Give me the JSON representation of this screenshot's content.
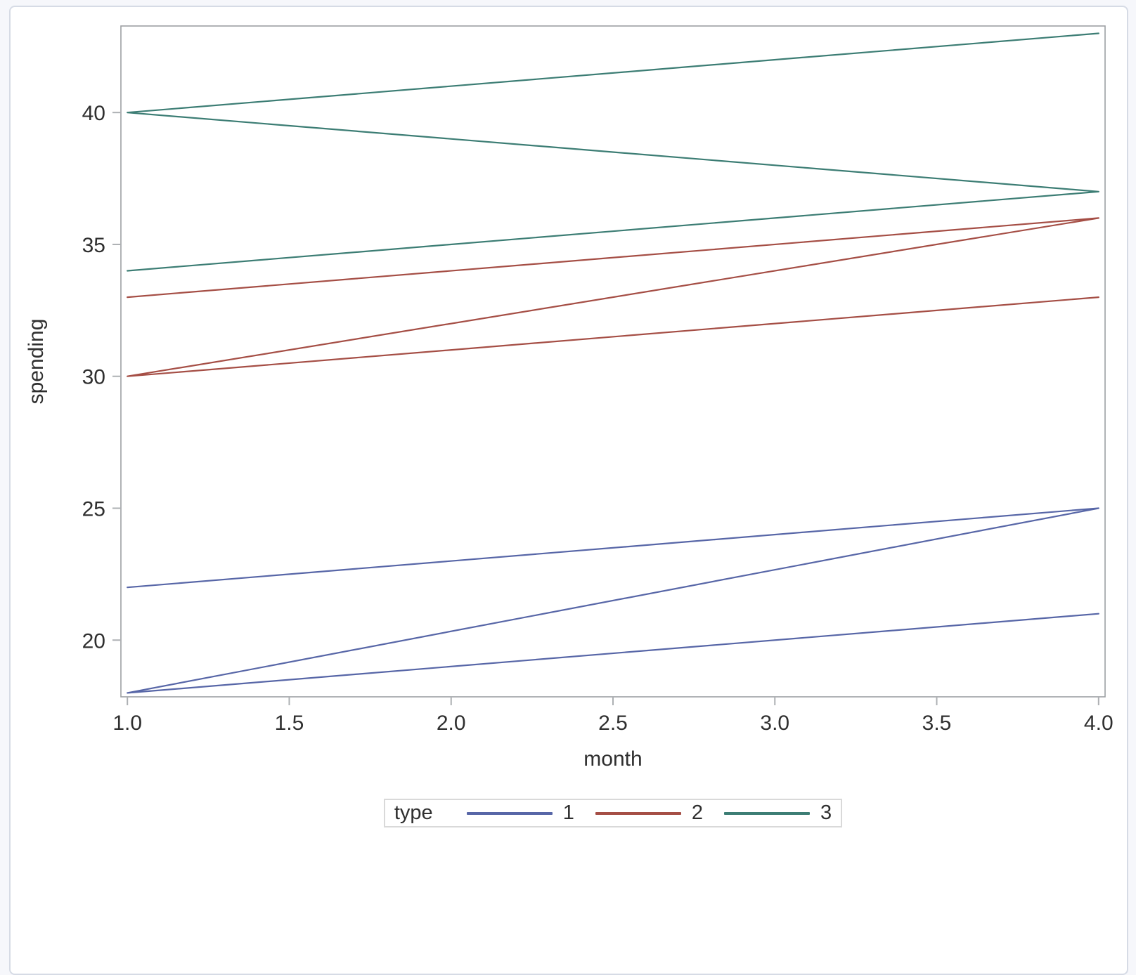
{
  "page": {
    "background": "#F6F7FB",
    "panel_background": "#FFFFFF",
    "panel_border_color": "#D6DBE5"
  },
  "colors": {
    "frame": "#9DA0A3",
    "tick": "#ADB0B3",
    "text": "#2F2F2F",
    "legend_border": "#D9D9D9",
    "series_blue": "#5766A7",
    "series_red": "#A54E45",
    "series_teal": "#3C7D74"
  },
  "chart_data": {
    "type": "line",
    "title": "",
    "xlabel": "month",
    "ylabel": "spending",
    "xlim": [
      0.98,
      4.02
    ],
    "ylim": [
      17.85,
      43.28
    ],
    "x_ticks": [
      1.0,
      1.5,
      2.0,
      2.5,
      3.0,
      3.5,
      4.0
    ],
    "x_tick_labels": [
      "1.0",
      "1.5",
      "2.0",
      "2.5",
      "3.0",
      "3.5",
      "4.0"
    ],
    "y_ticks": [
      20,
      25,
      30,
      35,
      40
    ],
    "y_tick_labels": [
      "20",
      "25",
      "30",
      "35",
      "40"
    ],
    "grid": false,
    "legend_position": "bottom-center",
    "series": [
      {
        "name": "1",
        "color": "#5766A7",
        "points": [
          [
            1,
            22
          ],
          [
            4,
            25
          ],
          [
            1,
            18
          ],
          [
            4,
            21
          ]
        ]
      },
      {
        "name": "2",
        "color": "#A54E45",
        "points": [
          [
            1,
            33
          ],
          [
            4,
            36
          ],
          [
            1,
            30
          ],
          [
            4,
            33
          ]
        ]
      },
      {
        "name": "3",
        "color": "#3C7D74",
        "points": [
          [
            1,
            34
          ],
          [
            4,
            37
          ],
          [
            1,
            40
          ],
          [
            4,
            43
          ]
        ]
      }
    ]
  },
  "legend": {
    "title": "type",
    "entries": [
      {
        "label": "1",
        "color": "#5766A7"
      },
      {
        "label": "2",
        "color": "#A54E45"
      },
      {
        "label": "3",
        "color": "#3C7D74"
      }
    ]
  }
}
